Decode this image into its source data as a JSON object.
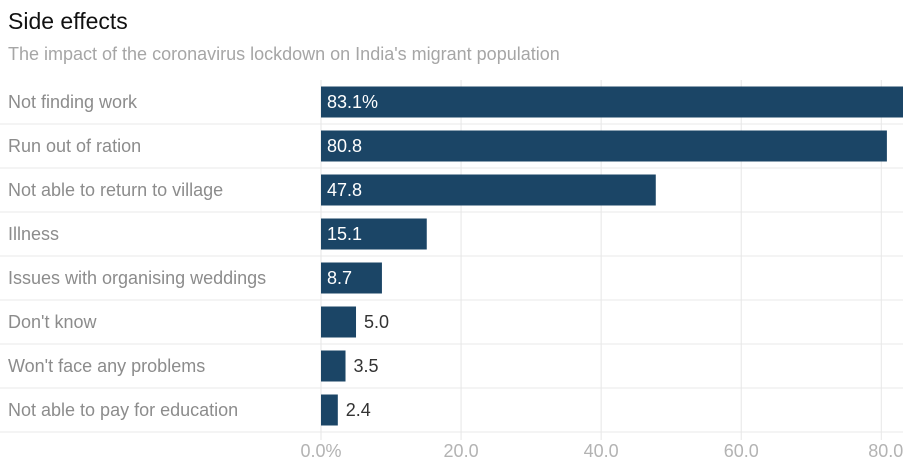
{
  "title": "Side effects",
  "subtitle": "The impact of the coronavirus lockdown on India's migrant population",
  "colors": {
    "bar": "#1b4566",
    "label_inside": "#ffffff",
    "label_outside": "#333333",
    "grid": "#e6e6e6",
    "row_divider": "#e8e8e8"
  },
  "chart_data": {
    "type": "bar",
    "orientation": "horizontal",
    "title": "Side effects",
    "subtitle": "The impact of the coronavirus lockdown on India's migrant population",
    "categories": [
      "Not finding work",
      "Run out of ration",
      "Not able to return to village",
      "Illness",
      "Issues with organising weddings",
      "Don't know",
      "Won't face any problems",
      "Not able to pay for education"
    ],
    "values": [
      83.1,
      80.8,
      47.8,
      15.1,
      8.7,
      5.0,
      3.5,
      2.4
    ],
    "value_labels": [
      "83.1%",
      "80.8",
      "47.8",
      "15.1",
      "8.7",
      "5.0",
      "3.5",
      "2.4"
    ],
    "x_ticks": [
      0,
      20,
      40,
      60,
      80
    ],
    "x_tick_labels": [
      "0.0%",
      "20.0",
      "40.0",
      "60.0",
      "80.0"
    ],
    "xlim": [
      0,
      83.1
    ],
    "grid": true,
    "legend": "none"
  }
}
